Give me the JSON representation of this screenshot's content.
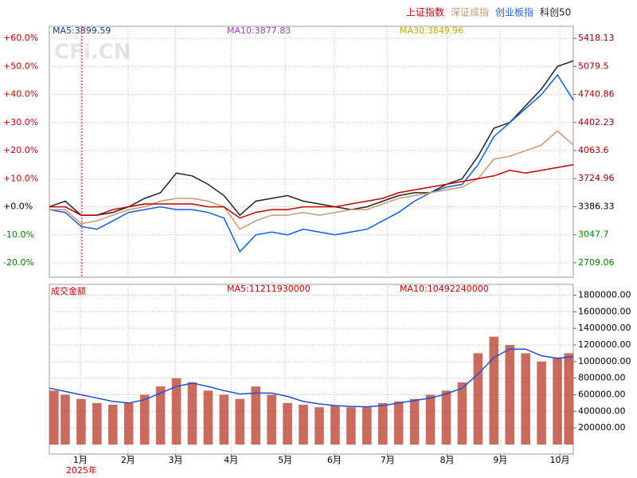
{
  "legend": [
    {
      "text": "上证指数",
      "color": "#c00000"
    },
    {
      "text": "深证成指",
      "color": "#c8966e"
    },
    {
      "text": "创业板指",
      "color": "#1e64d0"
    },
    {
      "text": "科创50",
      "color": "#222222"
    }
  ],
  "chart_data": [
    {
      "type": "line",
      "watermark": "CFi.CN",
      "annotations": [
        {
          "text": "MA5:3899.59",
          "color": "#1a3a8a"
        },
        {
          "text": "MA10:3877.83",
          "color": "#a040c0"
        },
        {
          "text": "MA30:3849.96",
          "color": "#c8a800"
        }
      ],
      "x": [
        0,
        2,
        4,
        6,
        8,
        10,
        12,
        14,
        16,
        18,
        20,
        22,
        24,
        26,
        28,
        30,
        32,
        34,
        36,
        38,
        40,
        42,
        44,
        46,
        48,
        50,
        52,
        54,
        56,
        58,
        60,
        62,
        64,
        66
      ],
      "xlim": [
        0,
        66
      ],
      "xticks": [
        {
          "value": 3.9,
          "label": "1月"
        },
        {
          "value": 9.9,
          "label": "2月"
        },
        {
          "value": 15.9,
          "label": "3月"
        },
        {
          "value": 22.9,
          "label": "4月"
        },
        {
          "value": 29.7,
          "label": "5月"
        },
        {
          "value": 35.9,
          "label": "6月"
        },
        {
          "value": 42.6,
          "label": "7月"
        },
        {
          "value": 50.1,
          "label": "8月"
        },
        {
          "value": 56.8,
          "label": "9月"
        },
        {
          "value": 64.3,
          "label": "10月"
        }
      ],
      "year_marker": {
        "value": 4.1,
        "label": "2025年"
      },
      "ylim": [
        -25.1,
        64.3
      ],
      "yticks": [
        {
          "value": 60,
          "label": "+60.0%"
        },
        {
          "value": 50,
          "label": "+50.0%"
        },
        {
          "value": 40,
          "label": "+40.0%"
        },
        {
          "value": 30,
          "label": "+30.0%"
        },
        {
          "value": 20,
          "label": "+20.0%"
        },
        {
          "value": 10,
          "label": "+10.0%"
        },
        {
          "value": 0,
          "label": "+0.0%"
        },
        {
          "value": -10,
          "label": "-10.0%"
        },
        {
          "value": -20,
          "label": "-20.0%"
        }
      ],
      "y2lim": [
        2534.9,
        5563.3
      ],
      "y2ticks": [
        5418.13,
        5079.5,
        4740.86,
        4402.23,
        4063.6,
        3724.96,
        3386.33,
        3047.7,
        2709.06
      ],
      "grid": true,
      "series": [
        {
          "name": "科创50",
          "color": "#222222",
          "values": [
            0,
            2,
            -3,
            -3,
            -2,
            0,
            3,
            5,
            12,
            11,
            8,
            4,
            -3,
            2,
            3,
            4,
            2,
            1,
            0,
            -1,
            0,
            2,
            4,
            5,
            5,
            8,
            10,
            18,
            28,
            30,
            36,
            42,
            50,
            52
          ]
        },
        {
          "name": "创业板指",
          "color": "#1060e0",
          "values": [
            -1,
            -2,
            -7,
            -8,
            -5,
            -2,
            -1,
            0,
            -1,
            -1,
            -2,
            -4,
            -16,
            -10,
            -9,
            -10,
            -8,
            -9,
            -10,
            -9,
            -8,
            -5,
            -2,
            2,
            5,
            7,
            8,
            15,
            25,
            30,
            35,
            40,
            47,
            38
          ]
        },
        {
          "name": "深证成指",
          "color": "#c89870",
          "values": [
            -1,
            -1,
            -6,
            -5,
            -3,
            -1,
            0,
            2,
            3,
            3,
            2,
            0,
            -8,
            -5,
            -3,
            -3,
            -2,
            -3,
            -2,
            -1,
            -1,
            1,
            3,
            4,
            5,
            6,
            7,
            10,
            17,
            18,
            20,
            22,
            27,
            22
          ]
        },
        {
          "name": "上证指数",
          "color": "#c00000",
          "values": [
            0,
            0,
            -3,
            -3,
            -1,
            0,
            1,
            1,
            1,
            1,
            0,
            0,
            -4,
            -2,
            -1,
            -1,
            0,
            0,
            0,
            1,
            2,
            3,
            5,
            6,
            7,
            8,
            9,
            10,
            11,
            13,
            12,
            13,
            14,
            15
          ]
        }
      ]
    },
    {
      "type": "bar",
      "title": "成交金额",
      "annotations": [
        {
          "text": "MA5:11211930000",
          "color": "#c00000"
        },
        {
          "text": "MA10:10492240000",
          "color": "#c00000"
        }
      ],
      "x": [
        0,
        2,
        4,
        6,
        8,
        10,
        12,
        14,
        16,
        18,
        20,
        22,
        24,
        26,
        28,
        30,
        32,
        34,
        36,
        38,
        40,
        42,
        44,
        46,
        48,
        50,
        52,
        54,
        56,
        58,
        60,
        62,
        64,
        66
      ],
      "xlim": [
        0,
        66
      ],
      "ylim": [
        -115000,
        1930000
      ],
      "yticks": [
        {
          "value": 1800000,
          "label": "1800000.00"
        },
        {
          "value": 1600000,
          "label": "1600000.00"
        },
        {
          "value": 1400000,
          "label": "1400000.00"
        },
        {
          "value": 1200000,
          "label": "1200000.00"
        },
        {
          "value": 1000000,
          "label": "1000000.00"
        },
        {
          "value": 800000,
          "label": "800000.00"
        },
        {
          "value": 600000,
          "label": "600000.00"
        },
        {
          "value": 400000,
          "label": "400000.00"
        },
        {
          "value": 200000,
          "label": "200000.00"
        }
      ],
      "color": "#b83a2a",
      "values": [
        650000,
        600000,
        550000,
        500000,
        480000,
        500000,
        600000,
        700000,
        800000,
        750000,
        650000,
        600000,
        550000,
        700000,
        600000,
        500000,
        480000,
        450000,
        470000,
        450000,
        450000,
        500000,
        520000,
        550000,
        600000,
        650000,
        750000,
        1100000,
        1300000,
        1200000,
        1100000,
        1000000,
        1050000,
        1100000
      ],
      "average_line": {
        "color": "#2050d0",
        "values": [
          680000,
          640000,
          600000,
          560000,
          520000,
          500000,
          540000,
          620000,
          700000,
          740000,
          700000,
          650000,
          610000,
          620000,
          620000,
          580000,
          520000,
          490000,
          470000,
          460000,
          455000,
          470000,
          500000,
          530000,
          560000,
          610000,
          680000,
          850000,
          1050000,
          1150000,
          1150000,
          1070000,
          1040000,
          1060000
        ]
      }
    }
  ]
}
